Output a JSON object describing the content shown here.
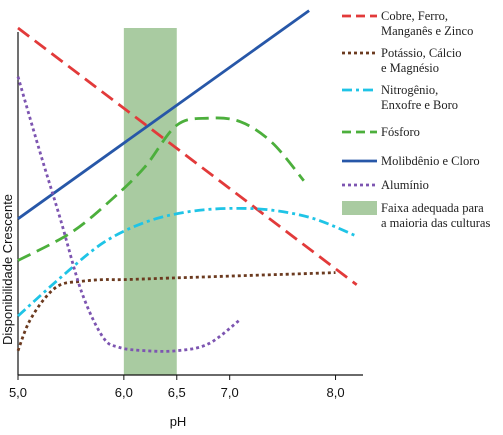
{
  "chart_data": {
    "type": "line",
    "xlabel": "pH",
    "ylabel": "Disponibilidade Crescente",
    "xlim": [
      5.0,
      8.25
    ],
    "ylim": [
      0,
      10
    ],
    "x_ticks": [
      "5,0",
      "6,0",
      "6,5",
      "7,0",
      "8,0"
    ],
    "x_tick_values": [
      5.0,
      6.0,
      6.5,
      7.0,
      8.0
    ],
    "band": {
      "x_range": [
        6.0,
        6.5
      ],
      "color": "#a9cba1",
      "label": "Faixa adequada para a maioria das culturas"
    },
    "series": [
      {
        "name": "Cobre, Ferro, Manganês e Zinco",
        "color": "#e23a3a",
        "dash": "dash",
        "x": [
          5.0,
          8.2
        ],
        "y": [
          10.0,
          2.6
        ]
      },
      {
        "name": "Potássio, Cálcio e Magnésio",
        "color": "#6b3a1f",
        "dash": "dot",
        "x": [
          5.0,
          5.1,
          5.25,
          5.4,
          5.6,
          5.8,
          6.0,
          6.5,
          7.0,
          7.5,
          8.0
        ],
        "y": [
          0.7,
          1.5,
          2.2,
          2.6,
          2.7,
          2.75,
          2.75,
          2.8,
          2.85,
          2.9,
          2.95
        ]
      },
      {
        "name": "Nitrogênio, Enxofre e Boro",
        "color": "#1fc4e6",
        "dash": "dashdot",
        "x": [
          5.0,
          5.4,
          5.8,
          6.2,
          6.6,
          7.0,
          7.4,
          7.8,
          8.2
        ],
        "y": [
          1.7,
          2.8,
          3.8,
          4.4,
          4.7,
          4.8,
          4.75,
          4.5,
          4.0
        ]
      },
      {
        "name": "Fósforo",
        "color": "#4caf3c",
        "dash": "dash",
        "x": [
          5.0,
          5.5,
          5.9,
          6.2,
          6.5,
          6.8,
          7.1,
          7.4,
          7.7
        ],
        "y": [
          3.3,
          4.1,
          5.1,
          6.0,
          7.2,
          7.4,
          7.3,
          6.7,
          5.6
        ]
      },
      {
        "name": "Molibdênio e Cloro",
        "color": "#2757a8",
        "dash": "solid",
        "x": [
          5.0,
          7.75
        ],
        "y": [
          4.5,
          10.5
        ]
      },
      {
        "name": "Alumínio",
        "color": "#7d55b1",
        "dash": "dot",
        "x": [
          5.0,
          5.2,
          5.4,
          5.6,
          5.8,
          5.95,
          6.2,
          6.5,
          6.8,
          7.1
        ],
        "y": [
          8.6,
          6.5,
          4.5,
          2.4,
          1.1,
          0.8,
          0.7,
          0.7,
          0.9,
          1.6
        ]
      }
    ]
  }
}
